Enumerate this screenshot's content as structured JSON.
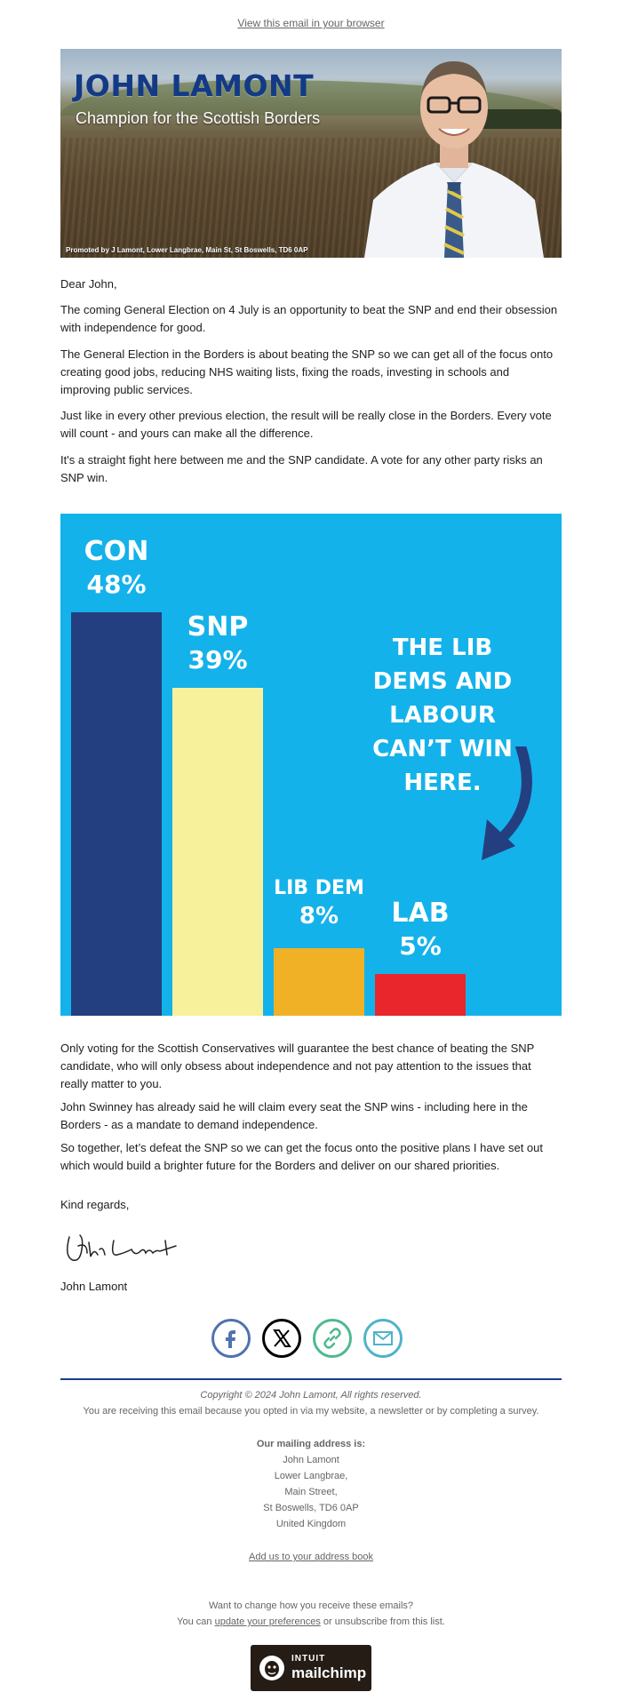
{
  "header": {
    "view_link": "View this email in your browser",
    "banner_title": "JOHN LAMONT",
    "banner_subtitle": "Champion for the Scottish Borders",
    "banner_imprint": "Promoted by J Lamont, Lower Langbrae, Main St, St Boswells, TD6 0AP"
  },
  "body": {
    "greeting": "Dear John,",
    "p1": "The coming General Election on 4 July is an opportunity to beat the SNP and end their obsession with independence for good.",
    "p2": "The General Election in the Borders is about beating the SNP so we can get all of the focus onto creating good jobs, reducing NHS waiting lists, fixing the roads, investing in schools and improving public services.",
    "p3": "Just like in every other previous election, the result will be really close in the Borders. Every vote will count - and yours can make all the difference.",
    "p4": "It's a straight fight here between me and the SNP candidate. A vote for any other party risks an SNP win.",
    "p5": "Only voting for the Scottish Conservatives will guarantee the best chance of beating the SNP candidate, who will only obsess about independence and not pay attention to the issues that really matter to you.",
    "p6": "John Swinney has already said he will claim every seat the SNP wins - including here in the Borders - as a mandate to demand independence.",
    "p7": "So together, let’s defeat the SNP so we can get the focus onto the positive plans I have set out which would build a brighter future for the Borders and deliver on our shared priorities.",
    "signoff": "Kind regards,",
    "signature_name": "John Lamont"
  },
  "chart_data": {
    "type": "bar",
    "categories": [
      "CON",
      "SNP",
      "LIB DEM",
      "LAB"
    ],
    "values": [
      48,
      39,
      8,
      5
    ],
    "value_labels": [
      "48%",
      "39%",
      "8%",
      "5%"
    ],
    "colors": [
      "#233f80",
      "#f8f19c",
      "#f0b127",
      "#e8262b"
    ],
    "background": "#14b2ea",
    "annotation": "THE LIB DEMS AND LABOUR CAN’T WIN HERE.",
    "ylim": [
      0,
      60
    ],
    "grid": false
  },
  "social": {
    "icons": [
      "facebook-icon",
      "x-icon",
      "link-icon",
      "email-icon"
    ],
    "colors": [
      "#4f72b0",
      "#000000",
      "#4fb98f",
      "#4fb3c9"
    ]
  },
  "footer": {
    "copyright": "Copyright © 2024 John Lamont, All rights reserved.",
    "reason": "You are receiving this email because you opted in via my website, a newsletter or by completing a survey.",
    "address_heading": "Our mailing address is:",
    "address": [
      "John Lamont",
      "Lower Langbrae,",
      "Main Street,",
      "St Boswells, TD6 0AP",
      "United Kingdom"
    ],
    "add_address_book": "Add us to your address book",
    "change_prompt": "Want to change how you receive these emails?",
    "you_can": "You can",
    "update_prefs": "update your preferences",
    "or_unsub": "or unsubscribe from this list.",
    "badge_top": "INTUIT",
    "badge_bottom": "mailchimp"
  }
}
